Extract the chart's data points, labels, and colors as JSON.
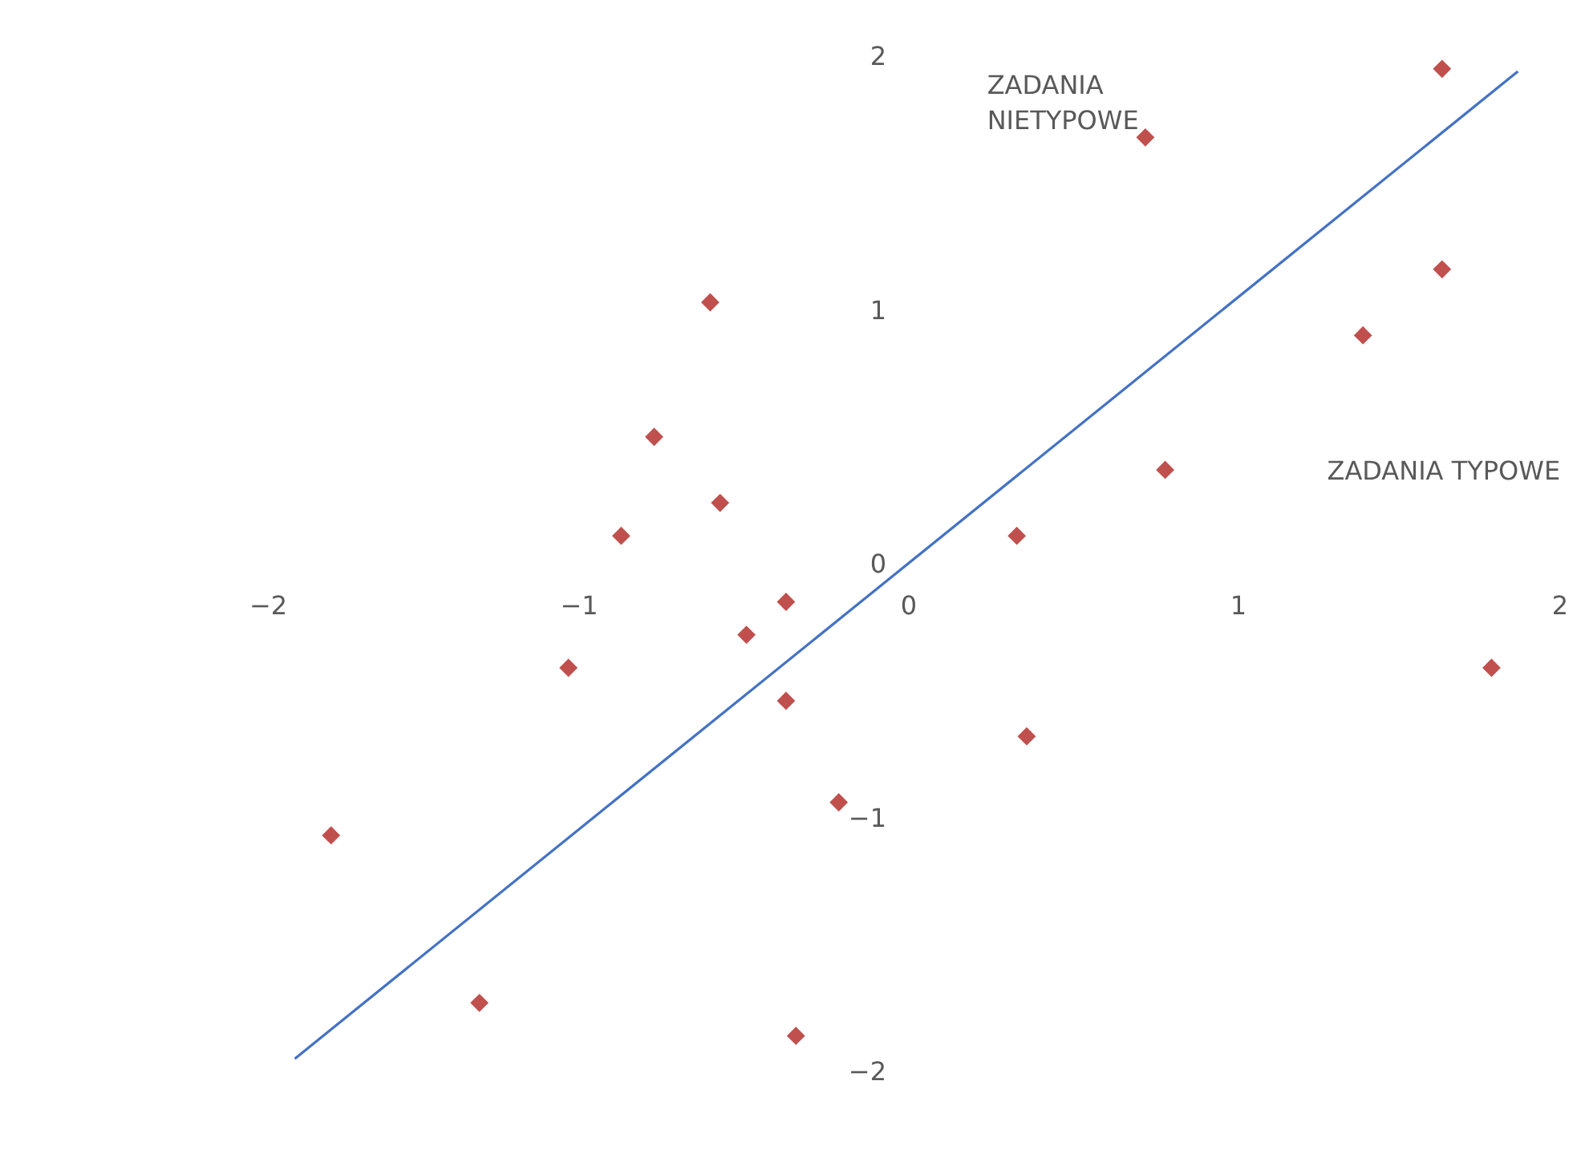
{
  "chart_data": {
    "type": "scatter",
    "xlim": [
      -2,
      2
    ],
    "ylim": [
      -2,
      2
    ],
    "xticks": [
      -2,
      -1,
      0,
      1,
      2
    ],
    "yticks": [
      -2,
      -1,
      0,
      1,
      2
    ],
    "grid": false,
    "marker": "diamond",
    "annotations": [
      "ZADANIA NIETYPOWE",
      "ZADANIA TYPOWE"
    ],
    "series": [
      {
        "color": "#c0504d",
        "x": [
          1.62,
          0.72,
          1.62,
          1.38,
          0.78,
          0.33,
          0.36,
          1.77,
          -0.6,
          -0.77,
          -0.57,
          -0.87,
          -0.37,
          -0.49,
          -1.03,
          -0.37,
          -0.21,
          -1.75,
          -1.3,
          -0.34
        ],
        "values": [
          1.95,
          1.68,
          1.16,
          0.9,
          0.37,
          0.11,
          -0.68,
          -0.41,
          1.03,
          0.5,
          0.24,
          0.11,
          -0.15,
          -0.28,
          -0.41,
          -0.54,
          -0.94,
          -1.07,
          -1.73,
          -1.86
        ]
      },
      {
        "type": "line",
        "color": "#4472c4",
        "marker": "none",
        "x": [
          -1.86,
          1.85
        ],
        "values": [
          -1.95,
          1.94
        ]
      }
    ]
  }
}
